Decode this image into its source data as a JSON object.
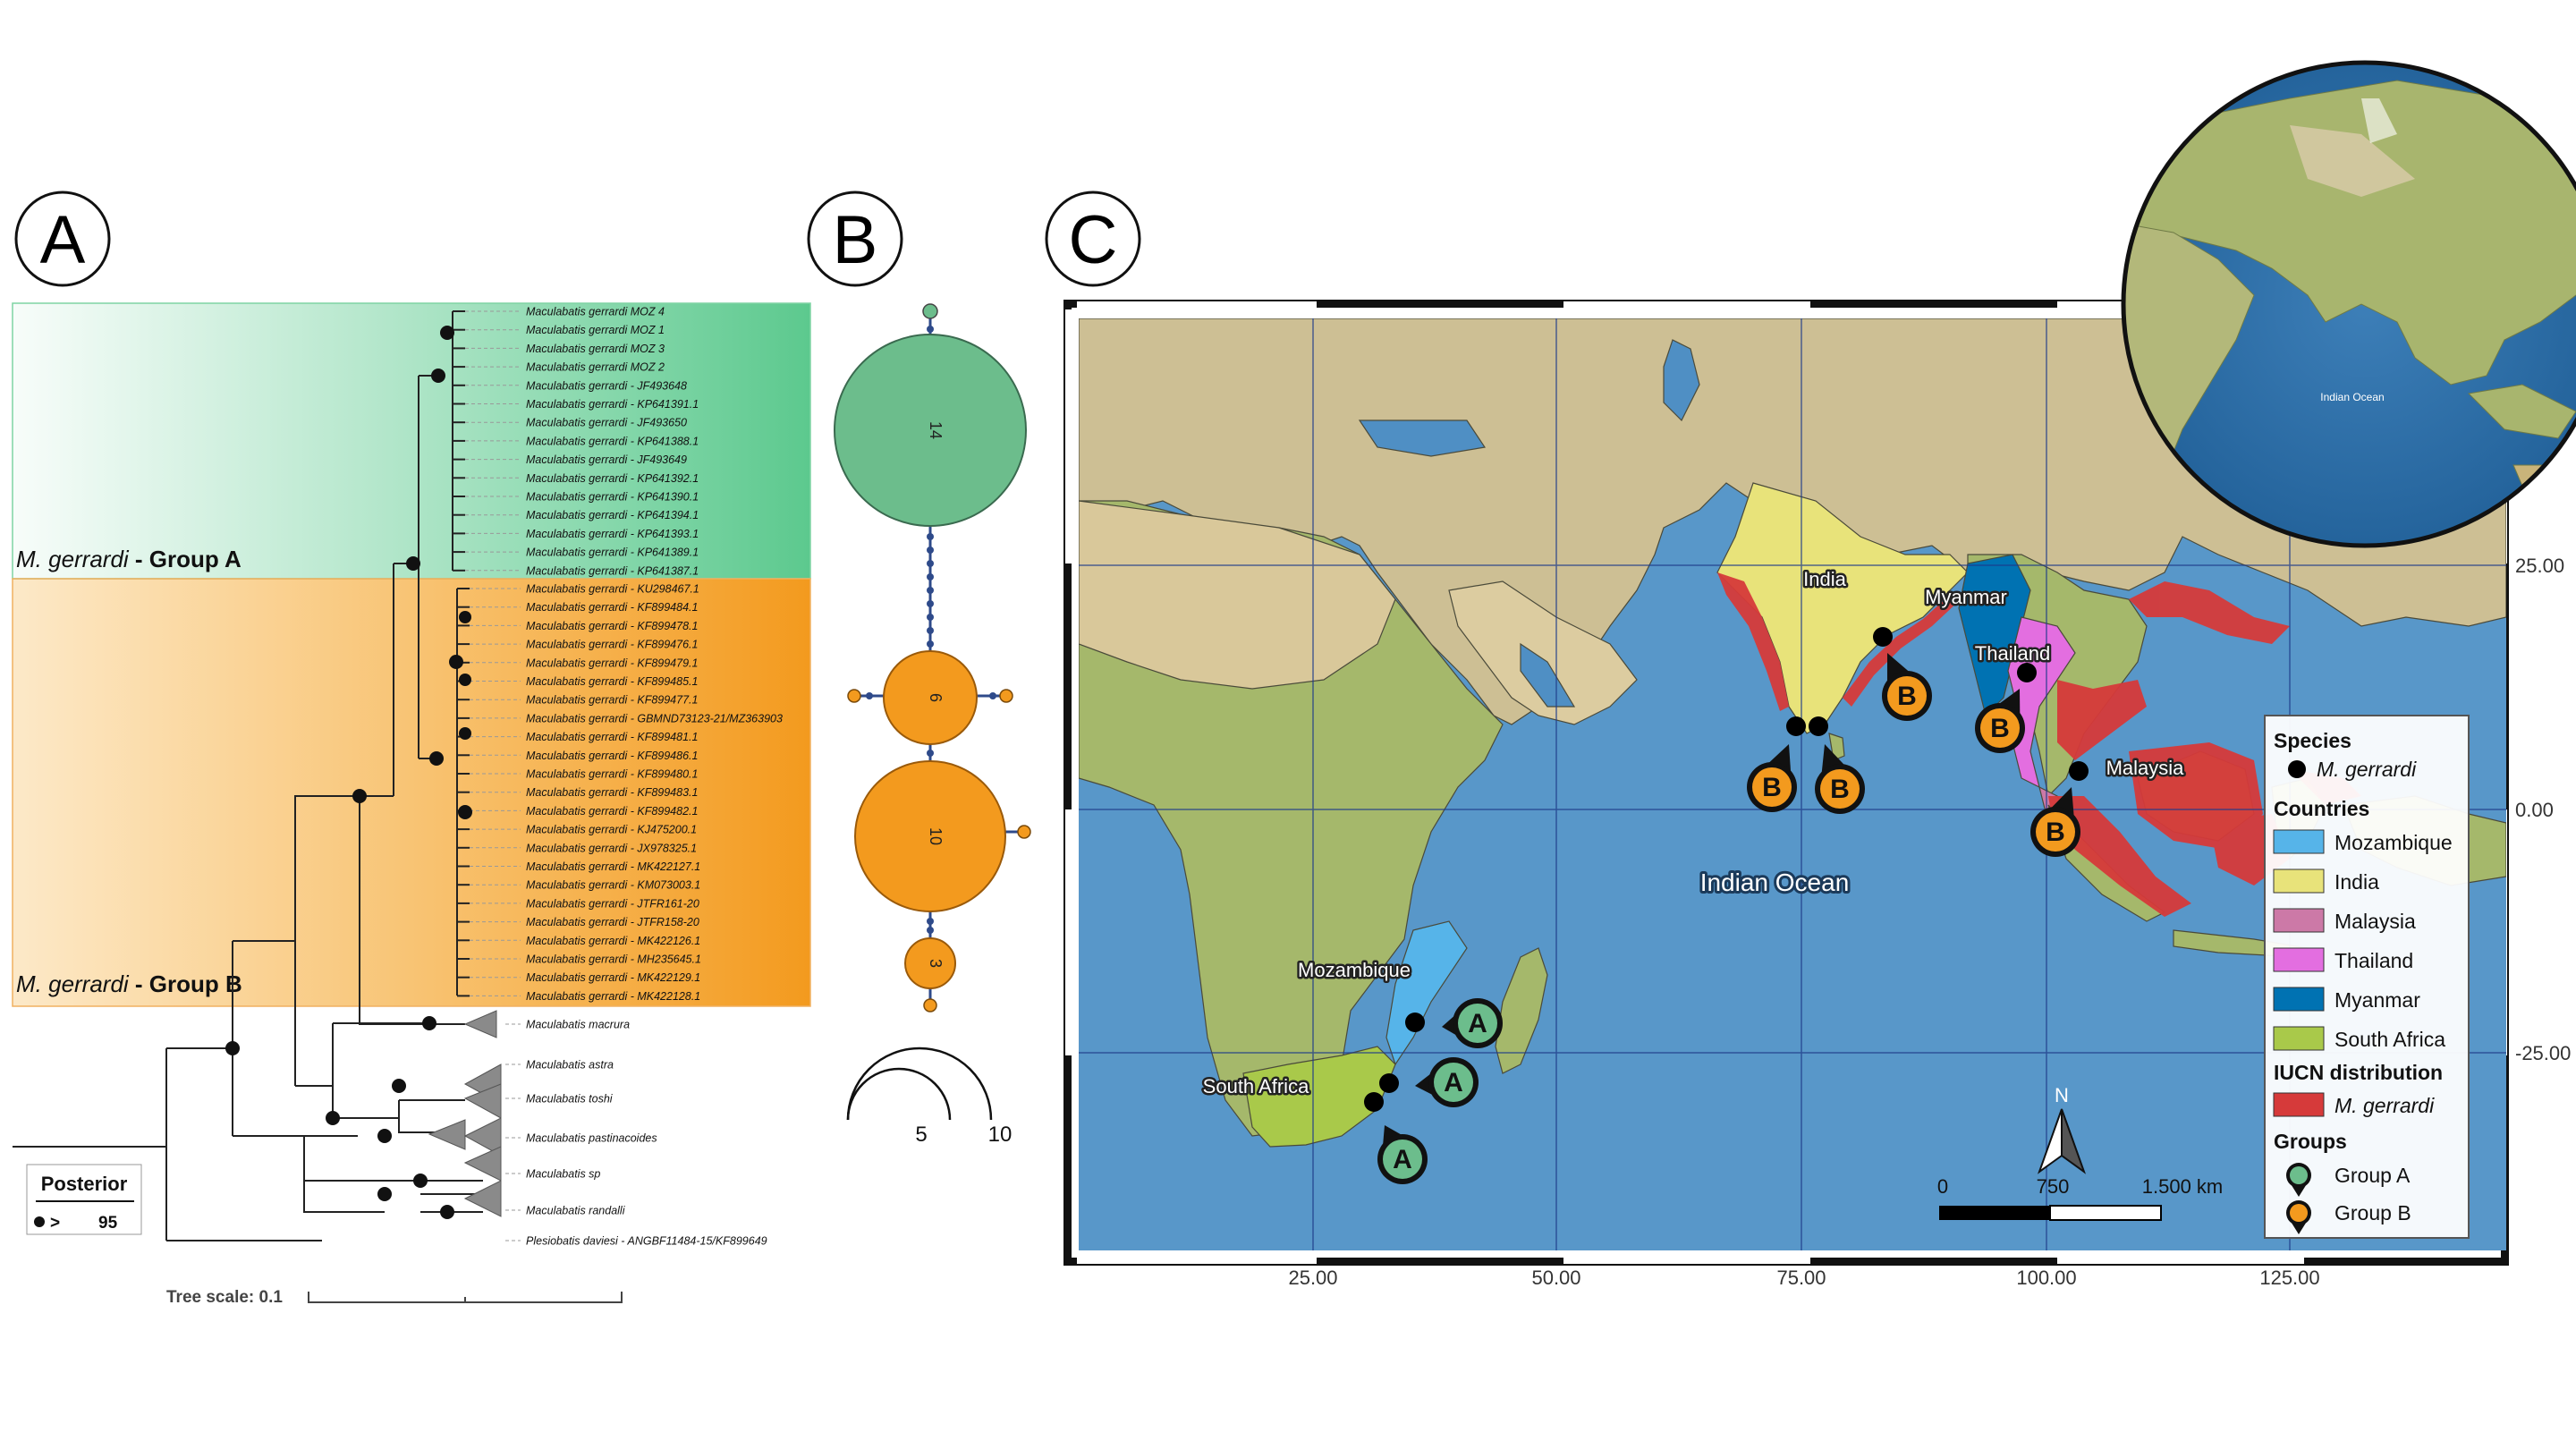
{
  "panels": {
    "a": "A",
    "b": "B",
    "c": "C"
  },
  "tree": {
    "group_a_label_italic": "M. gerrardi",
    "group_a_label_rest": " - Group A",
    "group_b_label_italic": "M. gerrardi",
    "group_b_label_rest": " - Group B",
    "group_a_tips": [
      "Maculabatis gerrardi MOZ 4",
      "Maculabatis gerrardi MOZ 1",
      "Maculabatis gerrardi MOZ 3",
      "Maculabatis gerrardi MOZ 2",
      "Maculabatis gerrardi - JF493648",
      "Maculabatis gerrardi - KP641391.1",
      "Maculabatis gerrardi - JF493650",
      "Maculabatis gerrardi - KP641388.1",
      "Maculabatis gerrardi - JF493649",
      "Maculabatis gerrardi - KP641392.1",
      "Maculabatis gerrardi - KP641390.1",
      "Maculabatis gerrardi - KP641394.1",
      "Maculabatis gerrardi - KP641393.1",
      "Maculabatis gerrardi - KP641389.1",
      "Maculabatis gerrardi - KP641387.1"
    ],
    "group_b_tips": [
      "Maculabatis gerrardi - KU298467.1",
      "Maculabatis gerrardi - KF899484.1",
      "Maculabatis gerrardi - KF899478.1",
      "Maculabatis gerrardi - KF899476.1",
      "Maculabatis gerrardi - KF899479.1",
      "Maculabatis gerrardi - KF899485.1",
      "Maculabatis gerrardi - KF899477.1",
      "Maculabatis gerrardi - GBMND73123-21/MZ363903",
      "Maculabatis gerrardi - KF899481.1",
      "Maculabatis gerrardi - KF899486.1",
      "Maculabatis gerrardi - KF899480.1",
      "Maculabatis gerrardi - KF899483.1",
      "Maculabatis gerrardi - KF899482.1",
      "Maculabatis gerrardi - KJ475200.1",
      "Maculabatis gerrardi - JX978325.1",
      "Maculabatis gerrardi - MK422127.1",
      "Maculabatis gerrardi - KM073003.1",
      "Maculabatis gerrardi - JTFR161-20",
      "Maculabatis gerrardi - JTFR158-20",
      "Maculabatis gerrardi - MK422126.1",
      "Maculabatis gerrardi - MH235645.1",
      "Maculabatis gerrardi - MK422129.1",
      "Maculabatis gerrardi - MK422128.1"
    ],
    "outgroup_tips": [
      "Maculabatis macrura",
      "Maculabatis astra",
      "Maculabatis toshi",
      "Maculabatis pastinacoides",
      "Maculabatis sp",
      "Maculabatis randalli",
      "Plesiobatis daviesi - ANGBF11484-15/KF899649"
    ],
    "posterior_title": "Posterior",
    "posterior_sign": ">",
    "posterior_value": "95",
    "scale_label": "Tree scale: 0.1"
  },
  "network": {
    "nodes": [
      {
        "count": "14",
        "color": "#6cbd8c"
      },
      {
        "count": "6",
        "color": "#f39a1e"
      },
      {
        "count": "10",
        "color": "#f39a1e"
      },
      {
        "count": "3",
        "color": "#f39a1e"
      }
    ],
    "scale_labels": [
      "5",
      "10"
    ]
  },
  "map": {
    "ocean_label": "Indian Ocean",
    "globe_label": "Indian Ocean",
    "place_labels": [
      "India",
      "Myanmar",
      "Thailand",
      "Malaysia",
      "Mozambique",
      "South Africa"
    ],
    "markers": [
      {
        "group": "A"
      },
      {
        "group": "A"
      },
      {
        "group": "A"
      },
      {
        "group": "B"
      },
      {
        "group": "B"
      },
      {
        "group": "B"
      },
      {
        "group": "B"
      },
      {
        "group": "B"
      }
    ],
    "x_ticks": [
      "25.00",
      "50.00",
      "75.00",
      "100.00",
      "125.00"
    ],
    "y_ticks": [
      "25.00",
      "0.00",
      "-25.00"
    ],
    "north_label": "N",
    "scalebar_labels": [
      "0",
      "750",
      "1.500 km"
    ],
    "legend": {
      "species_title": "Species",
      "species_item": "M. gerrardi",
      "countries_title": "Countries",
      "countries": [
        {
          "name": "Mozambique",
          "color": "#56b4e9"
        },
        {
          "name": "India",
          "color": "#e8e37a"
        },
        {
          "name": "Malaysia",
          "color": "#cc79a7"
        },
        {
          "name": "Thailand",
          "color": "#e36ee0"
        },
        {
          "name": "Myanmar",
          "color": "#0072b2"
        },
        {
          "name": "South Africa",
          "color": "#a9c94a"
        }
      ],
      "iucn_title": "IUCN distribution",
      "iucn_item": "M. gerrardi",
      "iucn_color": "#d63a3a",
      "groups_title": "Groups",
      "groups": [
        {
          "name": "Group A",
          "color": "#6cbd8c"
        },
        {
          "name": "Group B",
          "color": "#f39a1e"
        }
      ]
    }
  }
}
